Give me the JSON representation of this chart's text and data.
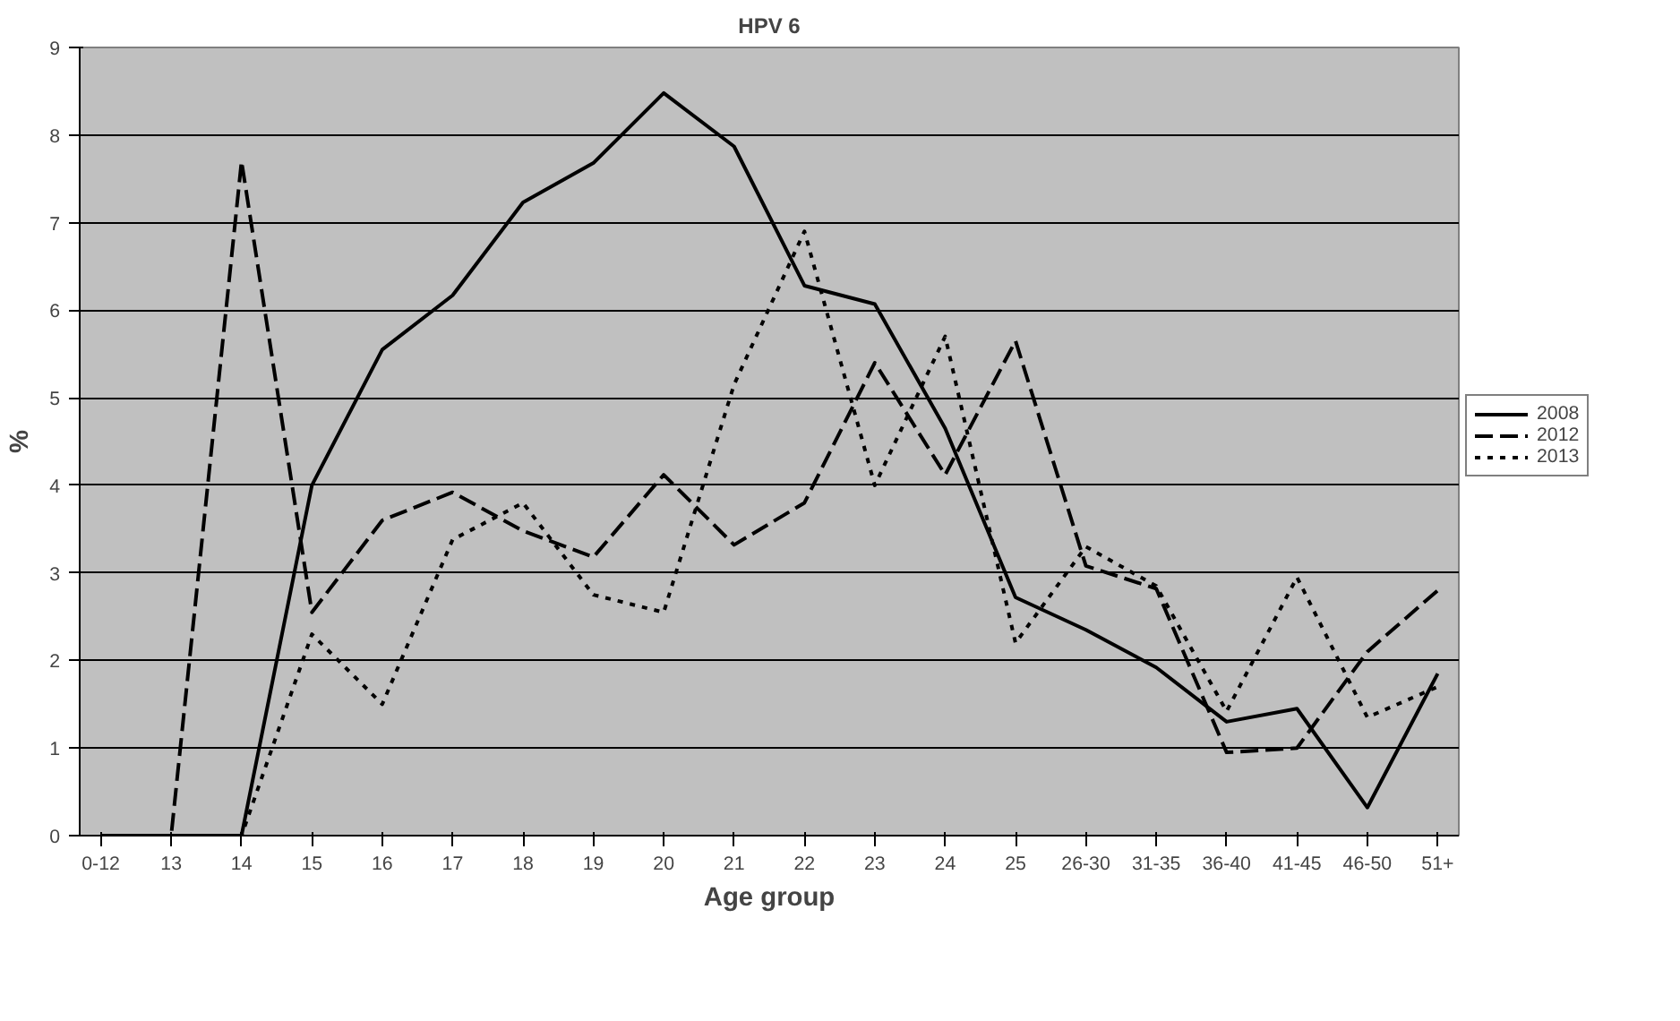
{
  "chart_data": {
    "type": "line",
    "title": "HPV 6",
    "xlabel": "Age group",
    "ylabel": "%",
    "categories": [
      "0-12",
      "13",
      "14",
      "15",
      "16",
      "17",
      "18",
      "19",
      "20",
      "21",
      "22",
      "23",
      "24",
      "25",
      "26-30",
      "31-35",
      "36-40",
      "41-45",
      "46-50",
      "51+"
    ],
    "series": [
      {
        "name": "2008",
        "color": "#000000",
        "line_style": "solid",
        "values": [
          0,
          0,
          0,
          4.0,
          5.55,
          6.17,
          7.23,
          7.68,
          8.48,
          7.87,
          6.28,
          6.07,
          4.65,
          2.72,
          2.35,
          1.92,
          1.3,
          1.45,
          0.32,
          1.85
        ]
      },
      {
        "name": "2012",
        "color": "#000000",
        "line_style": "dashed",
        "values": [
          0,
          0,
          7.7,
          2.55,
          3.6,
          3.92,
          3.48,
          3.18,
          4.12,
          3.32,
          3.8,
          5.4,
          4.12,
          5.65,
          3.08,
          2.82,
          0.95,
          1.0,
          2.1,
          2.8
        ]
      },
      {
        "name": "2013",
        "color": "#000000",
        "line_style": "dotted",
        "values": [
          0,
          0,
          0,
          2.3,
          1.5,
          3.38,
          3.8,
          2.75,
          2.55,
          5.15,
          6.9,
          4.0,
          5.7,
          2.2,
          3.3,
          2.85,
          1.42,
          2.95,
          1.35,
          1.7
        ]
      }
    ],
    "ylim": [
      0,
      9
    ],
    "yticks": [
      0,
      1,
      2,
      3,
      4,
      5,
      6,
      7,
      8,
      9
    ],
    "grid": "y",
    "legend": "right",
    "marker": "none"
  }
}
